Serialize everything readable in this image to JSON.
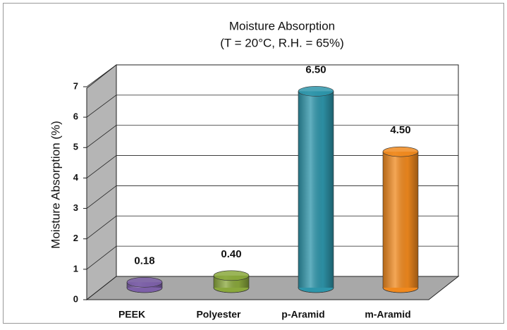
{
  "chart_data": {
    "type": "bar3d-cylinder",
    "title": "Moisture Absorption",
    "subtitle": "(T = 20°C, R.H. = 65%)",
    "y_label": "Moisture Absorption (%)",
    "categories": [
      "PEEK",
      "Polyester",
      "p-Aramid",
      "m-Aramid"
    ],
    "values": [
      0.18,
      0.4,
      6.5,
      4.5
    ],
    "value_labels": [
      "0.18",
      "0.40",
      "6.50",
      "4.50"
    ],
    "colors": [
      "#7d60a8",
      "#8aa83c",
      "#2e95aa",
      "#f0891e"
    ],
    "ylim": [
      0,
      7
    ],
    "yticks": [
      0,
      1,
      2,
      3,
      4,
      5,
      6,
      7
    ],
    "grid": true
  }
}
